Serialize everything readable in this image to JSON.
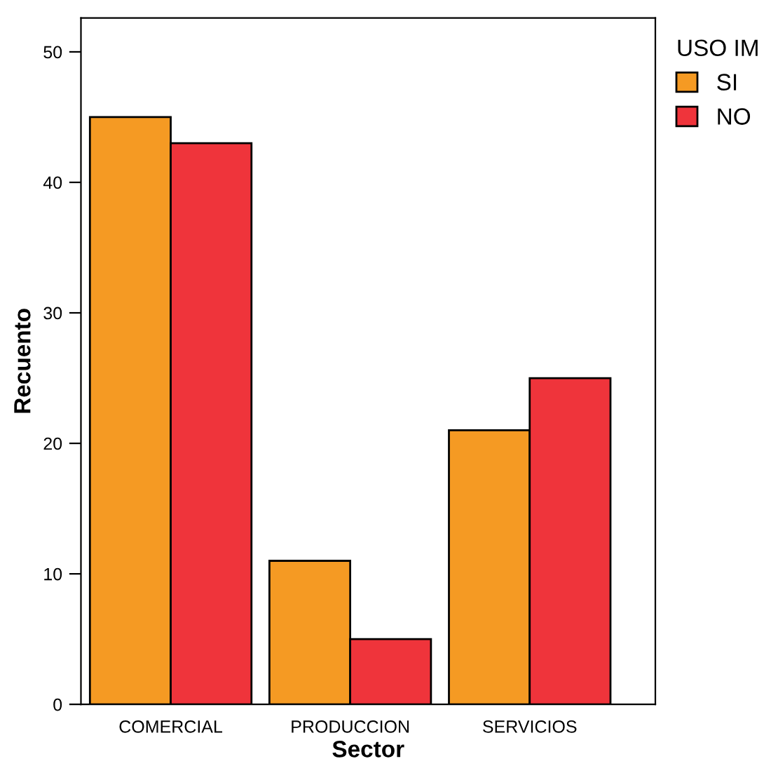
{
  "chart_data": {
    "type": "bar",
    "xlabel": "Sector",
    "ylabel": "Recuento",
    "legend_title": "USO IM",
    "legend": "top right",
    "categories": [
      "COMERCIAL",
      "PRODUCCION",
      "SERVICIOS"
    ],
    "series": [
      {
        "name": "SI",
        "color": "#f59a23",
        "values": [
          45,
          11,
          21
        ]
      },
      {
        "name": "NO",
        "color": "#ef343b",
        "values": [
          43,
          5,
          25
        ]
      }
    ],
    "ylim": [
      0,
      52.6
    ],
    "yticks": [
      0,
      10,
      20,
      30,
      40,
      50
    ],
    "grid": false
  }
}
